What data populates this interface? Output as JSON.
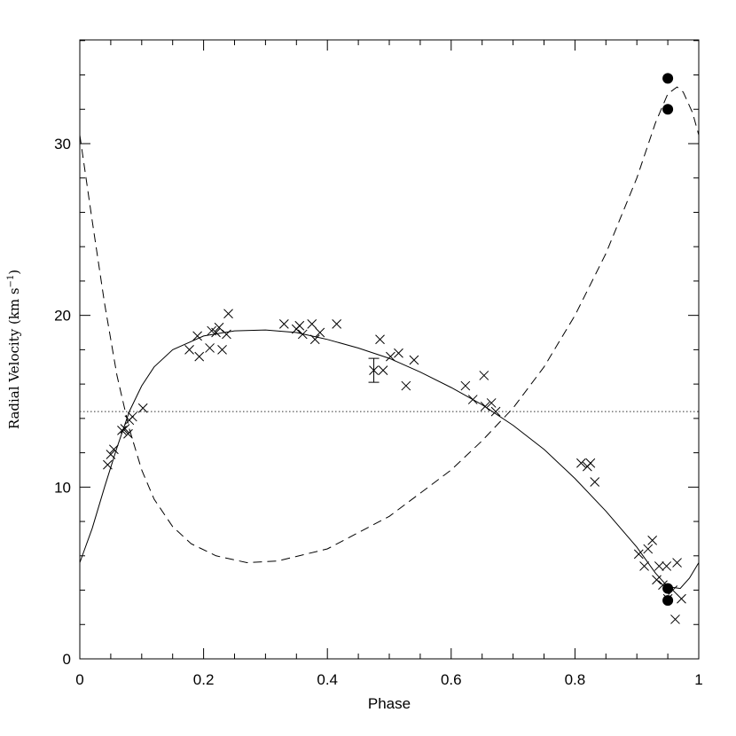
{
  "chart_data": {
    "type": "scatter",
    "xlabel": "Phase",
    "ylabel": "Radial Velocity (km s",
    "ylabel_unit_sup": "−1",
    "ylabel_end": ")",
    "xlim": [
      0,
      1
    ],
    "ylim": [
      0,
      36
    ],
    "x_ticks": [
      0,
      0.2,
      0.4,
      0.6,
      0.8,
      1
    ],
    "x_tick_labels": [
      "0",
      "0.2",
      "0.4",
      "0.6",
      "0.8",
      "1"
    ],
    "y_ticks": [
      0,
      10,
      20,
      30
    ],
    "y_tick_labels": [
      "0",
      "10",
      "20",
      "30"
    ],
    "grid": false,
    "legend": "none",
    "systemic_velocity": 14.4,
    "series": [
      {
        "marker": "cross",
        "points": [
          [
            0.045,
            11.3
          ],
          [
            0.05,
            11.9
          ],
          [
            0.055,
            12.2
          ],
          [
            0.068,
            13.3
          ],
          [
            0.073,
            13.4
          ],
          [
            0.078,
            13.1
          ],
          [
            0.08,
            13.9
          ],
          [
            0.085,
            14.1
          ],
          [
            0.102,
            14.6
          ],
          [
            0.177,
            18.0
          ],
          [
            0.19,
            18.8
          ],
          [
            0.193,
            17.6
          ],
          [
            0.21,
            18.1
          ],
          [
            0.213,
            19.1
          ],
          [
            0.22,
            19.0
          ],
          [
            0.225,
            19.3
          ],
          [
            0.23,
            18.0
          ],
          [
            0.237,
            18.9
          ],
          [
            0.24,
            20.1
          ],
          [
            0.33,
            19.5
          ],
          [
            0.35,
            19.2
          ],
          [
            0.355,
            19.4
          ],
          [
            0.36,
            18.9
          ],
          [
            0.375,
            19.5
          ],
          [
            0.38,
            18.6
          ],
          [
            0.388,
            19.0
          ],
          [
            0.415,
            19.5
          ],
          [
            0.475,
            16.8
          ],
          [
            0.485,
            18.6
          ],
          [
            0.49,
            16.8
          ],
          [
            0.502,
            17.6
          ],
          [
            0.515,
            17.8
          ],
          [
            0.527,
            15.9
          ],
          [
            0.54,
            17.4
          ],
          [
            0.623,
            15.9
          ],
          [
            0.635,
            15.1
          ],
          [
            0.653,
            16.5
          ],
          [
            0.655,
            14.7
          ],
          [
            0.665,
            14.9
          ],
          [
            0.672,
            14.4
          ],
          [
            0.81,
            11.4
          ],
          [
            0.82,
            11.2
          ],
          [
            0.825,
            11.4
          ],
          [
            0.832,
            10.3
          ],
          [
            0.903,
            6.1
          ],
          [
            0.912,
            5.4
          ],
          [
            0.918,
            6.4
          ],
          [
            0.925,
            6.9
          ],
          [
            0.932,
            4.6
          ],
          [
            0.936,
            5.4
          ],
          [
            0.942,
            4.3
          ],
          [
            0.948,
            5.4
          ],
          [
            0.95,
            3.5
          ],
          [
            0.958,
            4.0
          ],
          [
            0.962,
            2.3
          ],
          [
            0.965,
            5.6
          ],
          [
            0.972,
            3.5
          ]
        ]
      },
      {
        "marker": "filled-circle",
        "points": [
          [
            0.95,
            33.8
          ],
          [
            0.95,
            32.0
          ],
          [
            0.95,
            4.1
          ],
          [
            0.95,
            3.4
          ]
        ]
      },
      {
        "marker": "errorbar",
        "points": [
          [
            0.475,
            16.8,
            16.1,
            17.5
          ]
        ]
      },
      {
        "line": "solid",
        "points": [
          [
            0.0,
            5.6
          ],
          [
            0.02,
            7.6
          ],
          [
            0.04,
            10.0
          ],
          [
            0.06,
            12.3
          ],
          [
            0.08,
            14.4
          ],
          [
            0.1,
            15.9
          ],
          [
            0.12,
            17.0
          ],
          [
            0.15,
            18.0
          ],
          [
            0.2,
            18.8
          ],
          [
            0.25,
            19.1
          ],
          [
            0.3,
            19.15
          ],
          [
            0.35,
            19.0
          ],
          [
            0.4,
            18.6
          ],
          [
            0.45,
            18.1
          ],
          [
            0.5,
            17.5
          ],
          [
            0.55,
            16.7
          ],
          [
            0.6,
            15.8
          ],
          [
            0.65,
            14.8
          ],
          [
            0.7,
            13.6
          ],
          [
            0.75,
            12.2
          ],
          [
            0.8,
            10.5
          ],
          [
            0.85,
            8.6
          ],
          [
            0.9,
            6.5
          ],
          [
            0.93,
            5.0
          ],
          [
            0.95,
            4.2
          ],
          [
            0.97,
            4.1
          ],
          [
            0.985,
            4.7
          ],
          [
            1.0,
            5.6
          ]
        ]
      },
      {
        "line": "dashed",
        "points": [
          [
            0.0,
            30.5
          ],
          [
            0.02,
            25.5
          ],
          [
            0.04,
            20.7
          ],
          [
            0.06,
            16.5
          ],
          [
            0.08,
            13.4
          ],
          [
            0.1,
            11.0
          ],
          [
            0.12,
            9.3
          ],
          [
            0.15,
            7.7
          ],
          [
            0.18,
            6.7
          ],
          [
            0.22,
            6.0
          ],
          [
            0.27,
            5.6
          ],
          [
            0.32,
            5.7
          ],
          [
            0.4,
            6.4
          ],
          [
            0.5,
            8.3
          ],
          [
            0.6,
            11.0
          ],
          [
            0.65,
            12.7
          ],
          [
            0.7,
            14.6
          ],
          [
            0.75,
            17.0
          ],
          [
            0.8,
            20.0
          ],
          [
            0.85,
            23.6
          ],
          [
            0.9,
            28.0
          ],
          [
            0.93,
            31.2
          ],
          [
            0.95,
            32.9
          ],
          [
            0.965,
            33.3
          ],
          [
            0.975,
            33.0
          ],
          [
            0.99,
            31.8
          ],
          [
            1.0,
            30.5
          ]
        ]
      }
    ]
  }
}
